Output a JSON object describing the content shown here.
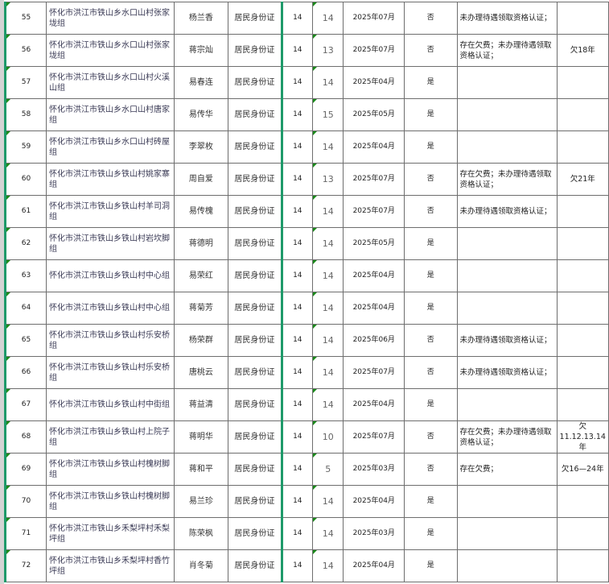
{
  "accent_color": "#1e9a6a",
  "rows": [
    {
      "no": "55",
      "addr": "怀化市洪江市铁山乡水口山村张家垅组",
      "name": "杨兰香",
      "id_type": "居民身份证",
      "c1": "14",
      "c2": "14",
      "date": "2025年07月",
      "ok": "否",
      "remark": "未办理待遇领取资格认证；",
      "note": ""
    },
    {
      "no": "56",
      "addr": "怀化市洪江市铁山乡水口山村张家垅组",
      "name": "蒋宗灿",
      "id_type": "居民身份证",
      "c1": "14",
      "c2": "13",
      "date": "2025年07月",
      "ok": "否",
      "remark": "存在欠费；未办理待遇领取资格认证；",
      "note": "欠18年"
    },
    {
      "no": "57",
      "addr": "怀化市洪江市铁山乡水口山村火溪山组",
      "name": "易春连",
      "id_type": "居民身份证",
      "c1": "14",
      "c2": "14",
      "date": "2025年04月",
      "ok": "是",
      "remark": "",
      "note": ""
    },
    {
      "no": "58",
      "addr": "怀化市洪江市铁山乡水口山村唐家组",
      "name": "易传华",
      "id_type": "居民身份证",
      "c1": "14",
      "c2": "15",
      "date": "2025年05月",
      "ok": "是",
      "remark": "",
      "note": ""
    },
    {
      "no": "59",
      "addr": "怀化市洪江市铁山乡水口山村砖屋组",
      "name": "李翠枚",
      "id_type": "居民身份证",
      "c1": "14",
      "c2": "14",
      "date": "2025年04月",
      "ok": "是",
      "remark": "",
      "note": ""
    },
    {
      "no": "60",
      "addr": "怀化市洪江市铁山乡铁山村姚家寨组",
      "name": "周自爱",
      "id_type": "居民身份证",
      "c1": "14",
      "c2": "13",
      "date": "2025年07月",
      "ok": "否",
      "remark": "存在欠费；未办理待遇领取资格认证；",
      "note": "欠21年"
    },
    {
      "no": "61",
      "addr": "怀化市洪江市铁山乡铁山村羊司洞组",
      "name": "易传槐",
      "id_type": "居民身份证",
      "c1": "14",
      "c2": "14",
      "date": "2025年07月",
      "ok": "否",
      "remark": "未办理待遇领取资格认证；",
      "note": ""
    },
    {
      "no": "62",
      "addr": "怀化市洪江市铁山乡铁山村岩坎脚组",
      "name": "蒋德明",
      "id_type": "居民身份证",
      "c1": "14",
      "c2": "14",
      "date": "2025年05月",
      "ok": "是",
      "remark": "",
      "note": ""
    },
    {
      "no": "63",
      "addr": "怀化市洪江市铁山乡铁山村中心组",
      "name": "易荣红",
      "id_type": "居民身份证",
      "c1": "14",
      "c2": "14",
      "date": "2025年04月",
      "ok": "是",
      "remark": "",
      "note": ""
    },
    {
      "no": "64",
      "addr": "怀化市洪江市铁山乡铁山村中心组",
      "name": "蒋菊芳",
      "id_type": "居民身份证",
      "c1": "14",
      "c2": "14",
      "date": "2025年04月",
      "ok": "是",
      "remark": "",
      "note": ""
    },
    {
      "no": "65",
      "addr": "怀化市洪江市铁山乡铁山村乐安桥组",
      "name": "杨荣群",
      "id_type": "居民身份证",
      "c1": "14",
      "c2": "14",
      "date": "2025年06月",
      "ok": "否",
      "remark": "未办理待遇领取资格认证；",
      "note": ""
    },
    {
      "no": "66",
      "addr": "怀化市洪江市铁山乡铁山村乐安桥组",
      "name": "唐桃云",
      "id_type": "居民身份证",
      "c1": "14",
      "c2": "14",
      "date": "2025年07月",
      "ok": "否",
      "remark": "未办理待遇领取资格认证；",
      "note": ""
    },
    {
      "no": "67",
      "addr": "怀化市洪江市铁山乡铁山村中街组",
      "name": "蒋益清",
      "id_type": "居民身份证",
      "c1": "14",
      "c2": "14",
      "date": "2025年04月",
      "ok": "是",
      "remark": "",
      "note": ""
    },
    {
      "no": "68",
      "addr": "怀化市洪江市铁山乡铁山村上院子组",
      "name": "蒋明华",
      "id_type": "居民身份证",
      "c1": "14",
      "c2": "10",
      "date": "2025年07月",
      "ok": "否",
      "remark": "存在欠费；未办理待遇领取资格认证；",
      "note": "欠11.12.13.14年"
    },
    {
      "no": "69",
      "addr": "怀化市洪江市铁山乡铁山村槐树脚组",
      "name": "蒋和平",
      "id_type": "居民身份证",
      "c1": "14",
      "c2": "5",
      "date": "2025年03月",
      "ok": "否",
      "remark": "存在欠费；",
      "note": "欠16—24年"
    },
    {
      "no": "70",
      "addr": "怀化市洪江市铁山乡铁山村槐树脚组",
      "name": "易兰珍",
      "id_type": "居民身份证",
      "c1": "14",
      "c2": "14",
      "date": "2025年04月",
      "ok": "是",
      "remark": "",
      "note": ""
    },
    {
      "no": "71",
      "addr": "怀化市洪江市铁山乡禾梨坪村禾梨坪组",
      "name": "陈荣枫",
      "id_type": "居民身份证",
      "c1": "14",
      "c2": "14",
      "date": "2025年03月",
      "ok": "是",
      "remark": "",
      "note": ""
    },
    {
      "no": "72",
      "addr": "怀化市洪江市铁山乡禾梨坪村香竹坪组",
      "name": "肖冬菊",
      "id_type": "居民身份证",
      "c1": "14",
      "c2": "14",
      "date": "2025年04月",
      "ok": "是",
      "remark": "",
      "note": ""
    }
  ]
}
